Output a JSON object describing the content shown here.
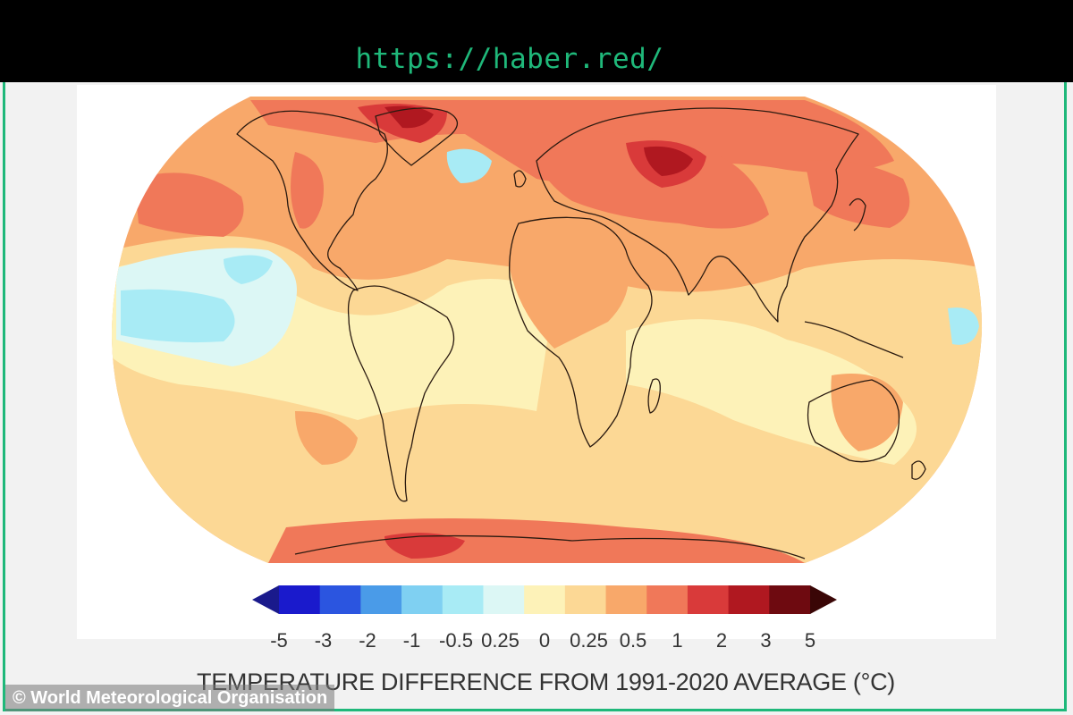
{
  "header": {
    "url": "https://haber.red/"
  },
  "credit": "© World Meteorological Organisation",
  "legend": {
    "title": "TEMPERATURE DIFFERENCE FROM 1991-2020 AVERAGE (°C)",
    "ticks": [
      "-5",
      "-3",
      "-2",
      "-1",
      "-0.5",
      "0.25",
      "0",
      "0.25",
      "0.5",
      "1",
      "2",
      "3",
      "5"
    ],
    "colors": [
      "#1a1acc",
      "#2b55e0",
      "#4a9be8",
      "#7fd0f2",
      "#a8ebf5",
      "#dcf7f5",
      "#fdf2b8",
      "#fcd895",
      "#f8a86a",
      "#f07859",
      "#d93a3a",
      "#b01820",
      "#6e0a10"
    ],
    "min_color": "#1a1a8c",
    "max_color": "#3a0606"
  },
  "map": {
    "type": "global temperature anomaly map",
    "base_color": "#f8a86a"
  }
}
